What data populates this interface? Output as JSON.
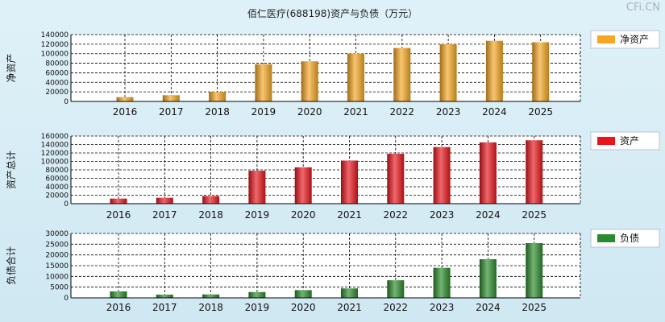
{
  "title": "佰仁医疗(688198)资产与负债（万元）",
  "watermark": "CFi.CN",
  "chart_data": [
    {
      "type": "bar",
      "ylabel": "净资产",
      "legend": "净资产",
      "color": "#f5a623",
      "ylim": [
        0,
        140000
      ],
      "ticks": [
        0,
        20000,
        40000,
        60000,
        80000,
        100000,
        120000,
        140000
      ],
      "categories": [
        "2016",
        "2017",
        "2018",
        "2019",
        "2020",
        "2021",
        "2022",
        "2023",
        "2024",
        "2025"
      ],
      "values": [
        9000,
        13000,
        20000,
        78000,
        84000,
        100000,
        112000,
        120000,
        127000,
        124000
      ]
    },
    {
      "type": "bar",
      "ylabel": "资产总计",
      "legend": "资产",
      "color": "#e8151b",
      "ylim": [
        0,
        160000
      ],
      "ticks": [
        0,
        20000,
        40000,
        60000,
        80000,
        100000,
        120000,
        140000,
        160000
      ],
      "categories": [
        "2016",
        "2017",
        "2018",
        "2019",
        "2020",
        "2021",
        "2022",
        "2023",
        "2024",
        "2025"
      ],
      "values": [
        12000,
        14000,
        18000,
        78000,
        86000,
        102000,
        118000,
        134000,
        145000,
        150000
      ]
    },
    {
      "type": "bar",
      "ylabel": "负债合计",
      "legend": "负债",
      "color": "#2b8a2b",
      "ylim": [
        0,
        30000
      ],
      "ticks": [
        0,
        5000,
        10000,
        15000,
        20000,
        25000,
        30000
      ],
      "categories": [
        "2016",
        "2017",
        "2018",
        "2019",
        "2020",
        "2021",
        "2022",
        "2023",
        "2024",
        "2025"
      ],
      "values": [
        3000,
        1500,
        1600,
        2700,
        3600,
        4400,
        8200,
        14000,
        18000,
        25500
      ]
    }
  ]
}
